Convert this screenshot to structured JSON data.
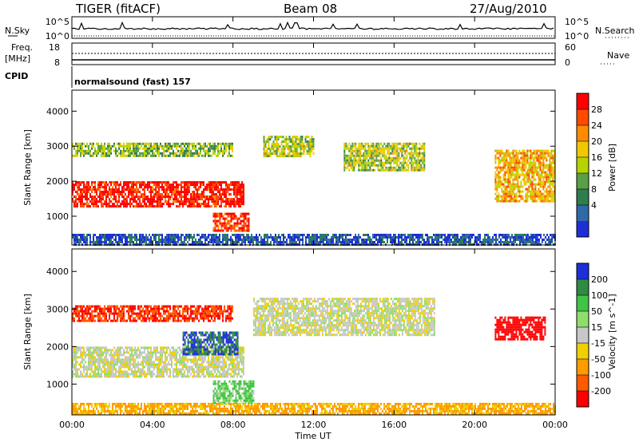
{
  "header": {
    "radar_title": "TIGER (fitACF)",
    "beam_label": "Beam 08",
    "date_label": "27/Aug/2010"
  },
  "nsky_panel": {
    "left_label": "N.Sky",
    "left_top_tick": "10^5",
    "left_bottom_tick": "10^0",
    "right_top_tick": "10^5",
    "right_bottom_tick": "10^0",
    "right_label": "N.Search"
  },
  "freq_panel": {
    "left_label_line1": "Freq.",
    "left_label_line2": "[MHz]",
    "left_top_tick": "18",
    "left_bottom_tick": "8",
    "right_top_tick": "60",
    "right_bottom_tick": "0",
    "right_label": "Nave"
  },
  "cpid": {
    "label": "CPID",
    "mode_text": "normalsound (fast) 157"
  },
  "power_panel": {
    "ylabel": "Slant Range [km]",
    "yticks": [
      "4000",
      "3000",
      "2000",
      "1000"
    ],
    "colorbar_label": "Power [dB]",
    "colorbar_ticks": [
      "28",
      "24",
      "20",
      "16",
      "12",
      "8",
      "4"
    ],
    "colorbar_colors": [
      "#ff0000",
      "#ff4a00",
      "#ff8c00",
      "#f0c800",
      "#b8d400",
      "#5a9e46",
      "#2e7d4f",
      "#2e6aa8",
      "#1e2fd8"
    ]
  },
  "velocity_panel": {
    "ylabel": "Slant Range [km]",
    "yticks": [
      "4000",
      "3000",
      "2000",
      "1000"
    ],
    "colorbar_label": "Velocity [m s^-1]",
    "colorbar_ticks": [
      "200",
      "100",
      "50",
      "15",
      "-15",
      "-50",
      "-100",
      "-200"
    ],
    "colorbar_colors": [
      "#1d2fd8",
      "#2f8a43",
      "#3fc444",
      "#8fde6c",
      "#c8c8c8",
      "#f0d000",
      "#ff9a00",
      "#ff5a00",
      "#ff0000"
    ]
  },
  "x_axis": {
    "label": "Time UT",
    "ticks": [
      "00:00",
      "04:00",
      "08:00",
      "12:00",
      "16:00",
      "20:00",
      "00:00"
    ]
  },
  "chart_data": [
    {
      "type": "line",
      "title": "N.Sky",
      "xlabel": "",
      "ylabel": "N.Sky",
      "x": [
        0,
        24
      ],
      "ylim": [
        1,
        100000
      ],
      "log_y": true,
      "series": []
    },
    {
      "type": "scatter",
      "title": "Freq. / Nave",
      "ylabel": "Freq. [MHz]",
      "ylim_left": [
        8,
        18
      ],
      "ylim_right": [
        0,
        60
      ],
      "series": []
    },
    {
      "type": "heatmap",
      "title": "Power",
      "xlabel": "Time UT",
      "ylabel": "Slant Range [km]",
      "xlim_hours": [
        0,
        24
      ],
      "ylim": [
        180,
        4600
      ],
      "colorbar": {
        "label": "Power [dB]",
        "ticks": [
          4,
          8,
          12,
          16,
          20,
          24,
          28
        ]
      },
      "regions": [
        {
          "t_start": 0.0,
          "t_end": 8.5,
          "range_low": 1300,
          "range_high": 2000,
          "power_db": 28
        },
        {
          "t_start": 7.0,
          "t_end": 8.8,
          "range_low": 600,
          "range_high": 1100,
          "power_db": 26
        },
        {
          "t_start": 0.0,
          "t_end": 8.0,
          "range_low": 2700,
          "range_high": 3100,
          "power_db": 14
        },
        {
          "t_start": 9.5,
          "t_end": 12.0,
          "range_low": 2700,
          "range_high": 3300,
          "power_db": 16
        },
        {
          "t_start": 13.5,
          "t_end": 17.5,
          "range_low": 2300,
          "range_high": 3100,
          "power_db": 16
        },
        {
          "t_start": 21.0,
          "t_end": 24.0,
          "range_low": 1400,
          "range_high": 2900,
          "power_db": 20
        },
        {
          "t_start": 0.0,
          "t_end": 24.0,
          "range_low": 200,
          "range_high": 500,
          "power_db": 6
        }
      ]
    },
    {
      "type": "heatmap",
      "title": "Velocity",
      "xlabel": "Time UT",
      "ylabel": "Slant Range [km]",
      "xlim_hours": [
        0,
        24
      ],
      "ylim": [
        180,
        4600
      ],
      "colorbar": {
        "label": "Velocity [m s^-1]",
        "ticks": [
          -200,
          -100,
          -50,
          -15,
          15,
          50,
          100,
          200
        ]
      },
      "regions": [
        {
          "t_start": 0.0,
          "t_end": 8.5,
          "range_low": 1200,
          "range_high": 2000,
          "velocity": 0
        },
        {
          "t_start": 0.0,
          "t_end": 8.0,
          "range_low": 2700,
          "range_high": 3100,
          "velocity": -150
        },
        {
          "t_start": 5.5,
          "t_end": 8.2,
          "range_low": 1800,
          "range_high": 2400,
          "velocity": 150
        },
        {
          "t_start": 7.0,
          "t_end": 9.0,
          "range_low": 500,
          "range_high": 1100,
          "velocity": 40
        },
        {
          "t_start": 9.0,
          "t_end": 18.0,
          "range_low": 2300,
          "range_high": 3300,
          "velocity": 0
        },
        {
          "t_start": 21.0,
          "t_end": 23.5,
          "range_low": 2200,
          "range_high": 2800,
          "velocity": -200
        },
        {
          "t_start": 0.0,
          "t_end": 24.0,
          "range_low": 200,
          "range_high": 500,
          "velocity": -60
        }
      ]
    }
  ]
}
